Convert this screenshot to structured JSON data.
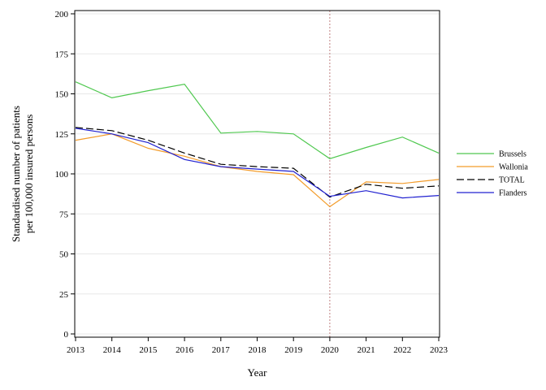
{
  "chart_data": {
    "type": "line",
    "xlabel": "Year",
    "ylabel_lines": [
      "Standardised number of patients",
      "per 100,000 insured persons"
    ],
    "x": [
      2013,
      2014,
      2015,
      2016,
      2017,
      2018,
      2019,
      2020,
      2021,
      2022,
      2023
    ],
    "xlim": [
      2013,
      2023
    ],
    "ylim": [
      0,
      200
    ],
    "yticks": [
      0,
      25,
      50,
      75,
      100,
      125,
      150,
      175,
      200
    ],
    "grid": true,
    "vertical_reference_line": 2020,
    "legend_position": "right",
    "series": [
      {
        "name": "Brussels",
        "color": "#4fc84f",
        "dash": "solid",
        "values": [
          157.5,
          147.5,
          152,
          156,
          125.5,
          126.5,
          125,
          109.5,
          116.5,
          123,
          113
        ]
      },
      {
        "name": "Wallonia",
        "color": "#f39c2b",
        "dash": "solid",
        "values": [
          121,
          125,
          116,
          111,
          104.5,
          101.5,
          99.5,
          79.5,
          95,
          94,
          96.5
        ]
      },
      {
        "name": "TOTAL",
        "color": "#000000",
        "dash": "dashed",
        "values": [
          129,
          127,
          121,
          113,
          106,
          104.5,
          103.5,
          85.5,
          93.5,
          91,
          92.5
        ]
      },
      {
        "name": "Flanders",
        "color": "#2020d0",
        "dash": "solid",
        "values": [
          128.5,
          125,
          119.5,
          109,
          104.5,
          103,
          101.5,
          86,
          89.5,
          85,
          86.5
        ]
      }
    ]
  }
}
